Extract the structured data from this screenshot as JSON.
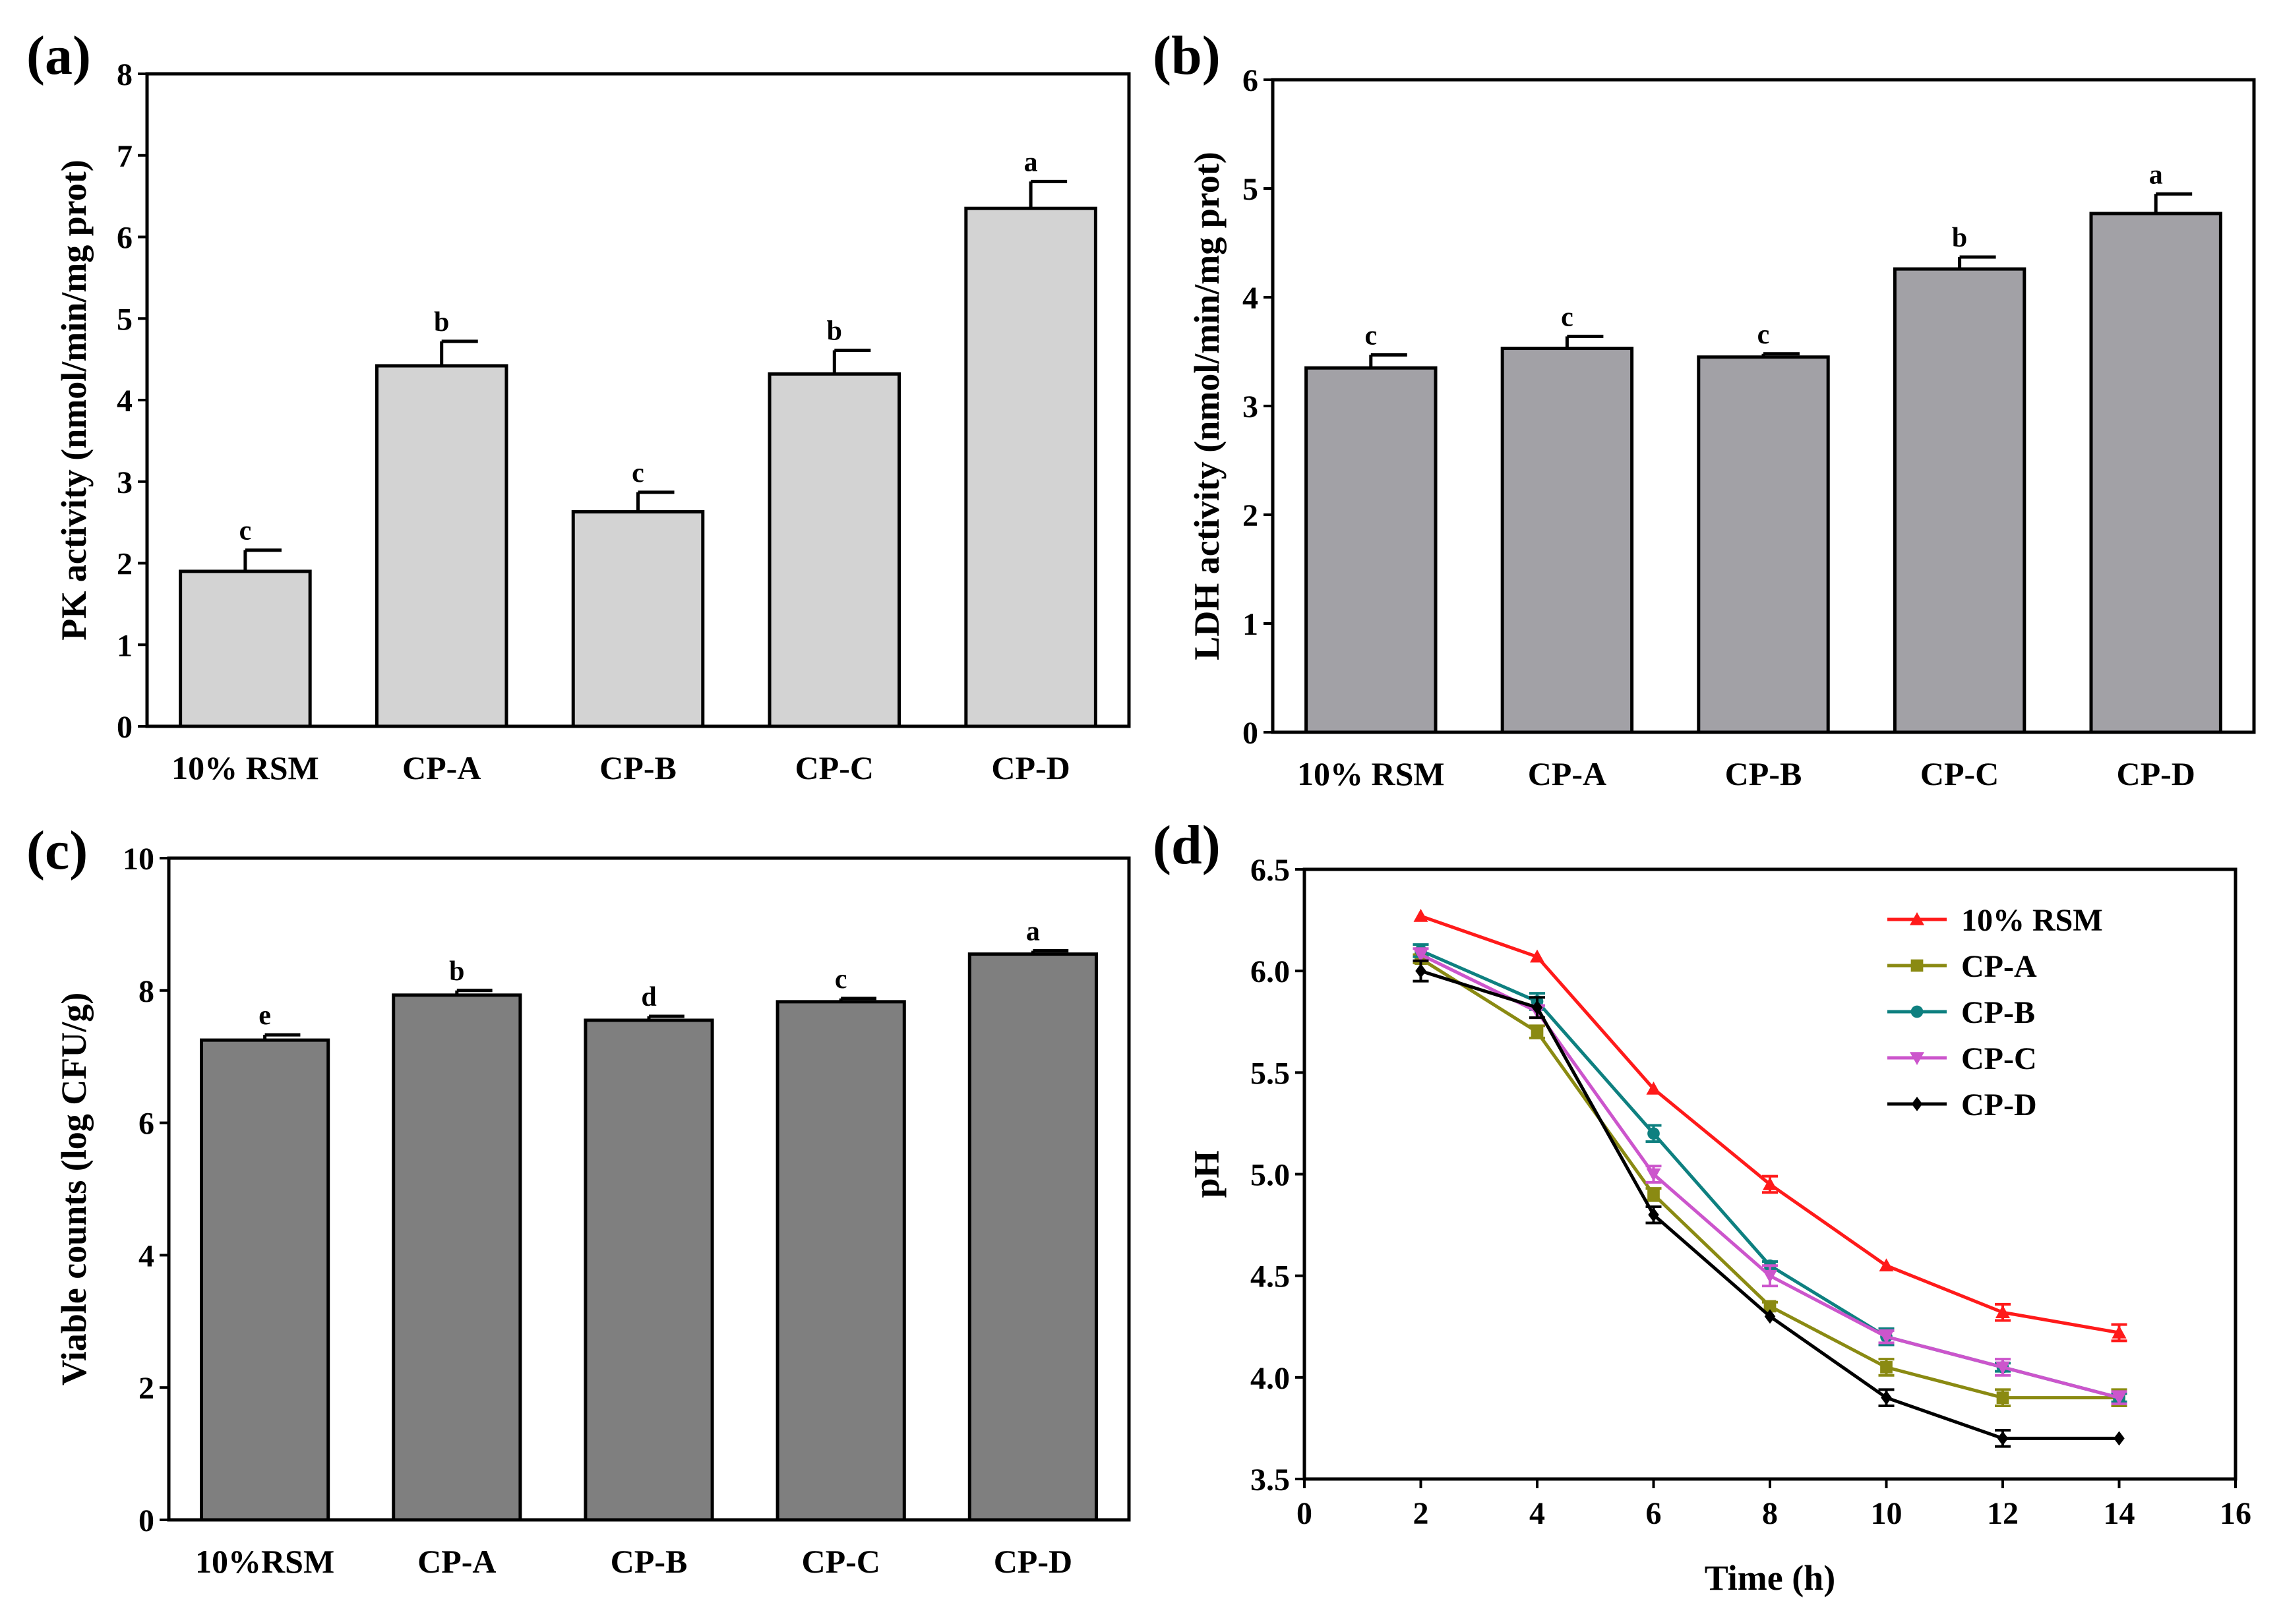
{
  "colors": {
    "bar_a": "#d3d3d3",
    "bar_b": "#a2a1a6",
    "bar_c": "#7f7f7f",
    "axis": "#000000"
  },
  "chart_data": [
    {
      "id": "a",
      "panel_label": "(a)",
      "type": "bar",
      "title": "",
      "xlabel": "",
      "ylabel": "PK activity (nmol/min/mg prot)",
      "ylim": [
        0,
        8
      ],
      "yticks": [
        0,
        1,
        2,
        3,
        4,
        5,
        6,
        7,
        8
      ],
      "ytick_labels": [
        "0",
        "1",
        "2",
        "3",
        "4",
        "5",
        "6",
        "7",
        "8"
      ],
      "categories": [
        "10% RSM",
        "CP-A",
        "CP-B",
        "CP-C",
        "CP-D"
      ],
      "values": [
        1.9,
        4.42,
        2.63,
        4.32,
        6.35
      ],
      "errors": [
        0.26,
        0.3,
        0.24,
        0.29,
        0.33
      ],
      "significance": [
        "c",
        "b",
        "c",
        "b",
        "a"
      ],
      "bar_color": "#d3d3d3"
    },
    {
      "id": "b",
      "panel_label": "(b)",
      "type": "bar",
      "title": "",
      "xlabel": "",
      "ylabel": "LDH activity (nmol/min/mg prot)",
      "ylim": [
        0,
        6
      ],
      "yticks": [
        0,
        1,
        2,
        3,
        4,
        5,
        6
      ],
      "ytick_labels": [
        "0",
        "1",
        "2",
        "3",
        "4",
        "5",
        "6"
      ],
      "categories": [
        "10% RSM",
        "CP-A",
        "CP-B",
        "CP-C",
        "CP-D"
      ],
      "values": [
        3.35,
        3.53,
        3.45,
        4.26,
        4.77
      ],
      "errors": [
        0.12,
        0.11,
        0.03,
        0.11,
        0.18
      ],
      "significance": [
        "c",
        "c",
        "c",
        "b",
        "a"
      ],
      "bar_color": "#a2a1a6"
    },
    {
      "id": "c",
      "panel_label": "(c)",
      "type": "bar",
      "title": "",
      "xlabel": "",
      "ylabel": "Viable counts (log CFU/g)",
      "ylim": [
        0,
        10
      ],
      "yticks": [
        0,
        2,
        4,
        6,
        8,
        10
      ],
      "ytick_labels": [
        "0",
        "2",
        "4",
        "6",
        "8",
        "10"
      ],
      "categories": [
        "10%RSM",
        "CP-A",
        "CP-B",
        "CP-C",
        "CP-D"
      ],
      "values": [
        7.25,
        7.93,
        7.55,
        7.83,
        8.55
      ],
      "errors": [
        0.08,
        0.07,
        0.06,
        0.05,
        0.05
      ],
      "significance": [
        "e",
        "b",
        "d",
        "c",
        "a"
      ],
      "bar_color": "#7f7f7f"
    },
    {
      "id": "d",
      "panel_label": "(d)",
      "type": "line",
      "title": "",
      "xlabel": "Time (h)",
      "ylabel": "pH",
      "xlim": [
        0,
        16
      ],
      "ylim": [
        3.5,
        6.5
      ],
      "xticks": [
        0,
        2,
        4,
        6,
        8,
        10,
        12,
        14,
        16
      ],
      "xtick_labels": [
        "0",
        "2",
        "4",
        "6",
        "8",
        "10",
        "12",
        "14",
        "16"
      ],
      "yticks": [
        3.5,
        4.0,
        4.5,
        5.0,
        5.5,
        6.0,
        6.5
      ],
      "ytick_labels": [
        "3.5",
        "4.0",
        "4.5",
        "5.0",
        "5.5",
        "6.0",
        "6.5"
      ],
      "x": [
        2,
        4,
        6,
        8,
        10,
        12,
        14
      ],
      "legend_position": "top-right",
      "series": [
        {
          "name": "10% RSM",
          "color": "#ff1a1a",
          "marker": "triangle",
          "values": [
            6.27,
            6.07,
            5.42,
            4.95,
            4.55,
            4.32,
            4.22
          ],
          "errors": [
            0.01,
            0.01,
            0.01,
            0.04,
            0.01,
            0.04,
            0.04
          ]
        },
        {
          "name": "CP-A",
          "color": "#8a8a12",
          "marker": "square",
          "values": [
            6.06,
            5.7,
            4.9,
            4.35,
            4.05,
            3.9,
            3.9
          ],
          "errors": [
            0.02,
            0.03,
            0.03,
            0.02,
            0.04,
            0.04,
            0.04
          ]
        },
        {
          "name": "CP-B",
          "color": "#0e8080",
          "marker": "circle",
          "values": [
            6.1,
            5.85,
            5.2,
            4.55,
            4.2,
            4.05,
            3.9
          ],
          "errors": [
            0.03,
            0.04,
            0.04,
            0.02,
            0.04,
            0.02,
            0.02
          ]
        },
        {
          "name": "CP-C",
          "color": "#cc55cc",
          "marker": "triangle-down",
          "values": [
            6.08,
            5.8,
            5.0,
            4.5,
            4.2,
            4.05,
            3.9
          ],
          "errors": [
            0.03,
            0.03,
            0.04,
            0.05,
            0.03,
            0.04,
            0.03
          ]
        },
        {
          "name": "CP-D",
          "color": "#000000",
          "marker": "diamond",
          "values": [
            6.0,
            5.82,
            4.8,
            4.3,
            3.9,
            3.7,
            3.7
          ],
          "errors": [
            0.05,
            0.05,
            0.04,
            0.01,
            0.04,
            0.04,
            0.01
          ]
        }
      ]
    }
  ]
}
